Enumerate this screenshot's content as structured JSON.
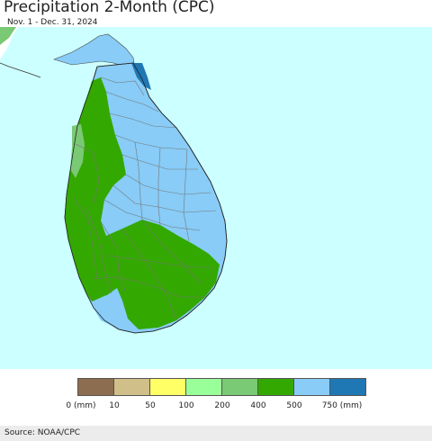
{
  "header": {
    "title": "Precipitation 2-Month (CPC)",
    "subtitle": "Nov. 1 - Dec. 31, 2024"
  },
  "map": {
    "ocean_color": "#ccffff",
    "land_color_outside": "#ffffff",
    "boundary_color": "#777777",
    "regions": [
      {
        "name": "northeast-coast",
        "category": "750 (mm)",
        "color": "#1f78b4"
      },
      {
        "name": "north-east-dry",
        "category": "500-750",
        "color": "#88ccf7"
      },
      {
        "name": "west-south",
        "category": "400-500",
        "color": "#33a800"
      },
      {
        "name": "west-coast-strip",
        "category": "200-400",
        "color": "#7ac974"
      }
    ]
  },
  "legend": {
    "bins": [
      {
        "color": "#8c6d4f"
      },
      {
        "color": "#d1bf8a"
      },
      {
        "color": "#ffff66"
      },
      {
        "color": "#99ff99"
      },
      {
        "color": "#7ac974"
      },
      {
        "color": "#33a800"
      },
      {
        "color": "#88ccf7"
      },
      {
        "color": "#1f78b4"
      }
    ],
    "tick_labels": [
      "0 (mm)",
      "10",
      "50",
      "100",
      "200",
      "400",
      "500",
      "750 (mm)"
    ]
  },
  "footer": {
    "source": "Source: NOAA/CPC"
  }
}
